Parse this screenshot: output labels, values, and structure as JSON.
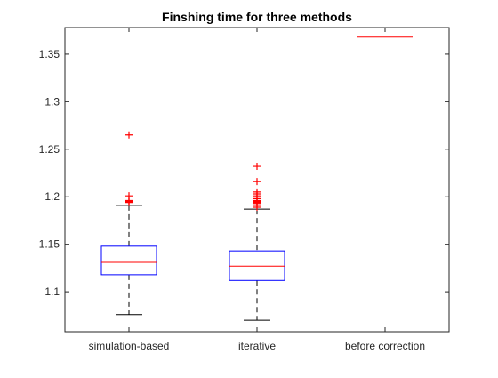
{
  "chart_data": {
    "type": "box",
    "title": "Finshing time for three methods",
    "xlabel": "",
    "ylabel": "",
    "categories": [
      "simulation-based",
      "iterative",
      "before correction"
    ],
    "ylim": [
      1.058,
      1.378
    ],
    "yticks": [
      1.1,
      1.15,
      1.2,
      1.25,
      1.3,
      1.35
    ],
    "ytick_labels": [
      "1.1",
      "1.15",
      "1.2",
      "1.25",
      "1.3",
      "1.35"
    ],
    "grid": false,
    "legend": "none",
    "boxes": [
      {
        "category": "simulation-based",
        "whisker_low": 1.076,
        "q1": 1.118,
        "median": 1.131,
        "q3": 1.148,
        "whisker_high": 1.191,
        "outliers": [
          1.265,
          1.201,
          1.196,
          1.195,
          1.194
        ]
      },
      {
        "category": "iterative",
        "whisker_low": 1.07,
        "q1": 1.112,
        "median": 1.127,
        "q3": 1.143,
        "whisker_high": 1.187,
        "outliers": [
          1.232,
          1.216,
          1.205,
          1.203,
          1.201,
          1.198,
          1.196,
          1.195,
          1.194,
          1.193,
          1.191,
          1.189
        ]
      },
      {
        "category": "before correction",
        "whisker_low": 1.368,
        "q1": 1.368,
        "median": 1.368,
        "q3": 1.368,
        "whisker_high": 1.368,
        "outliers": []
      }
    ],
    "colors": {
      "box": "#0000ff",
      "median": "#ff0000",
      "outlier": "#ff0000",
      "whisker": "#000000",
      "axes": "#262626",
      "background": "#ffffff"
    }
  }
}
